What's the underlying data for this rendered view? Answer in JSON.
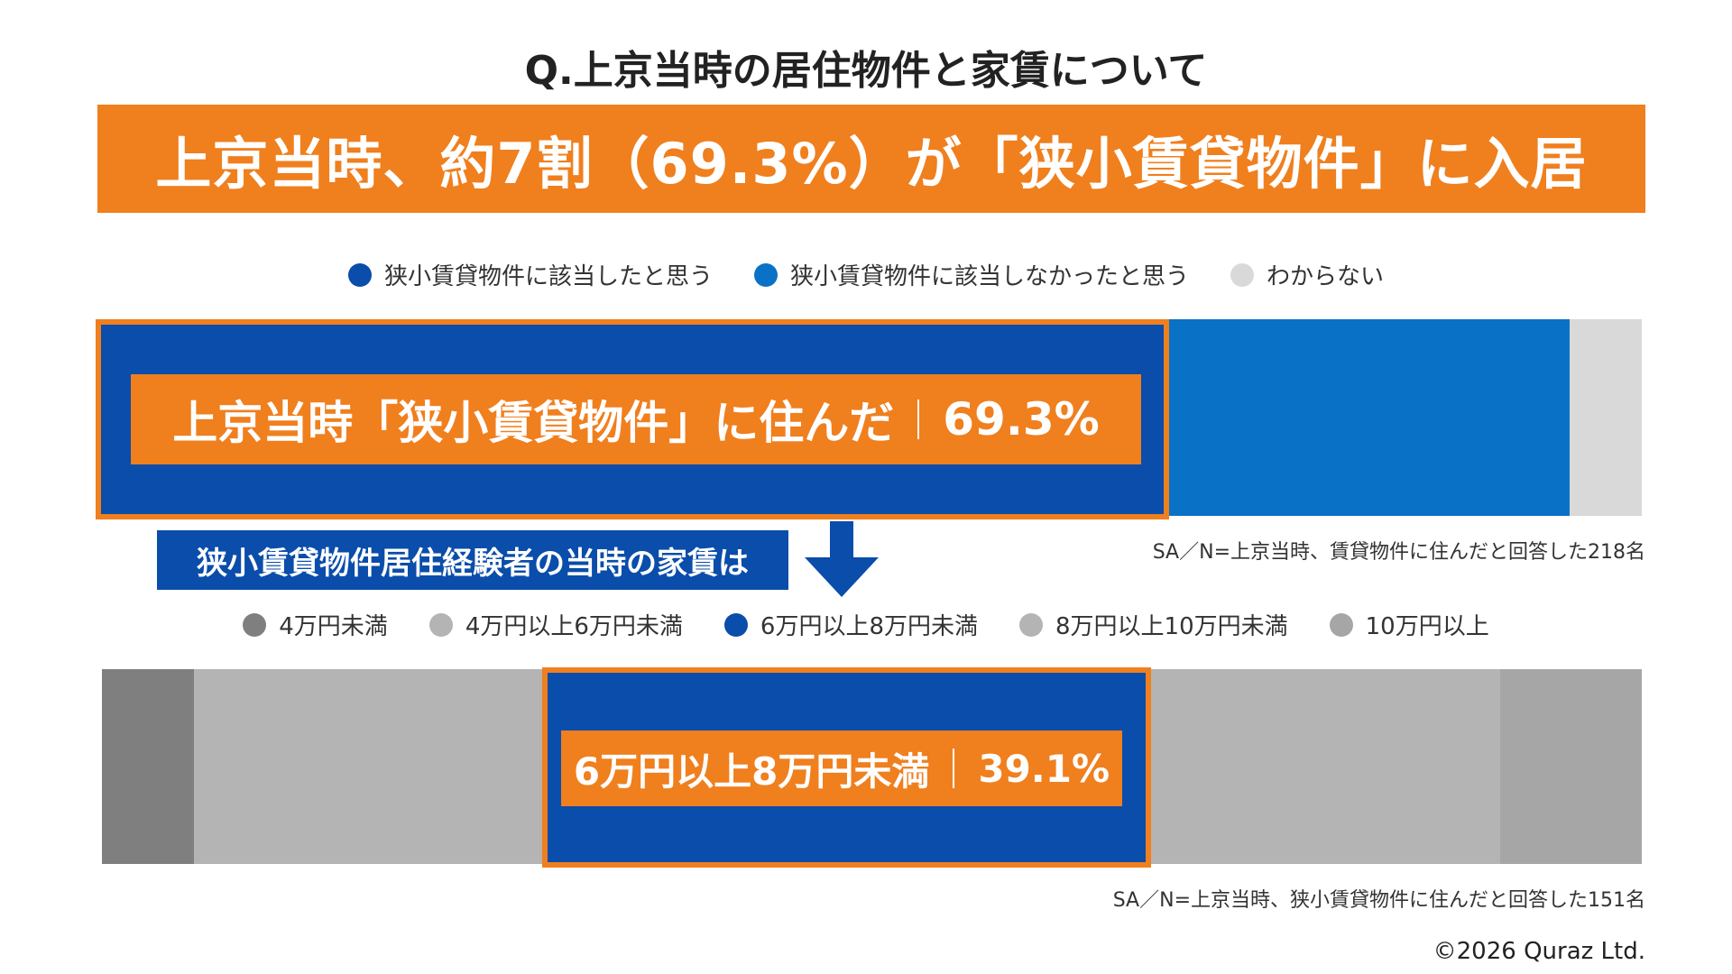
{
  "question": "Q.上京当時の居住物件と家賃について",
  "headline": "上京当時、約7割（69.3%）が「狭小賃貸物件」に入居",
  "colors": {
    "orange": "#f07f1e",
    "dark_blue": "#0a4daa",
    "mid_blue": "#0a72c6",
    "light_gray": "#d9d9d9",
    "gray_dark": "#7f7f7f",
    "gray_light": "#b4b4b4",
    "gray_mid": "#a6a6a6"
  },
  "chart_data": [
    {
      "type": "bar",
      "orientation": "horizontal-stacked-100",
      "legend": [
        {
          "name": "狭小賃貸物件に該当したと思う",
          "color": "#0a4daa"
        },
        {
          "name": "狭小賃貸物件に該当しなかったと思う",
          "color": "#0a72c6"
        },
        {
          "name": "わからない",
          "color": "#d9d9d9"
        }
      ],
      "values": [
        69.3,
        26.0,
        4.7
      ],
      "callout": {
        "label": "上京当時「狭小賃貸物件」に住んだ",
        "value": "69.3%"
      },
      "note": "SA／N=上京当時、賃貸物件に住んだと回答した218名"
    },
    {
      "type": "bar",
      "orientation": "horizontal-stacked-100",
      "subheading": "狭小賃貸物件居住経験者の当時の家賃は",
      "legend": [
        {
          "name": "4万円未満",
          "color": "#7f7f7f"
        },
        {
          "name": "4万円以上6万円未満",
          "color": "#b4b4b4"
        },
        {
          "name": "6万円以上8万円未満",
          "color": "#0a4daa"
        },
        {
          "name": "8万円以上10万円未満",
          "color": "#b4b4b4"
        },
        {
          "name": "10万円以上",
          "color": "#a6a6a6"
        }
      ],
      "values": [
        6.0,
        22.8,
        39.1,
        22.9,
        9.2
      ],
      "callout": {
        "label": "6万円以上8万円未満",
        "value": "39.1%"
      },
      "note": "SA／N=上京当時、狭小賃貸物件に住んだと回答した151名"
    }
  ],
  "copyright": "©2026 Quraz Ltd."
}
